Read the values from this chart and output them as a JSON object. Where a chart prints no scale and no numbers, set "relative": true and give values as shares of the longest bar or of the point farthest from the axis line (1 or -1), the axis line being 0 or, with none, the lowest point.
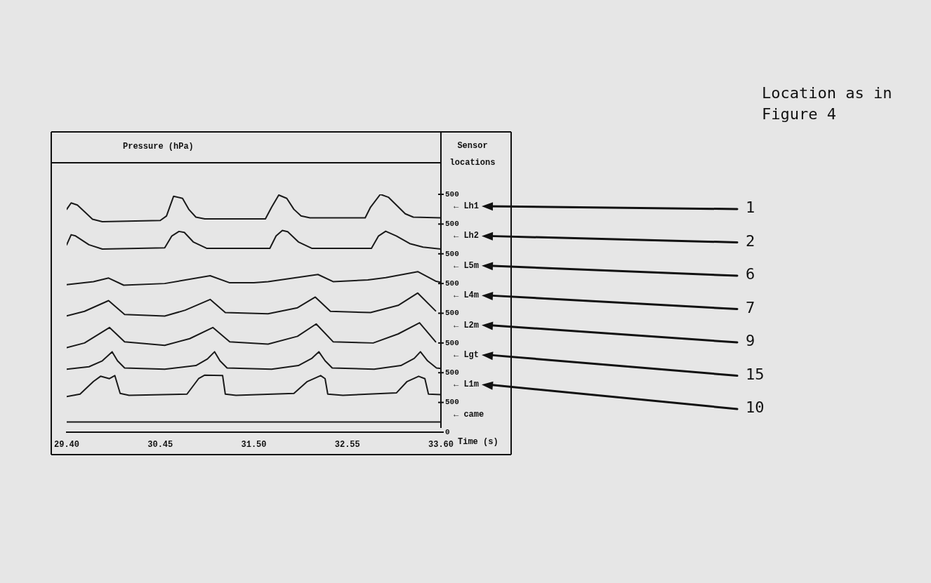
{
  "chart_data": {
    "type": "line",
    "title": "Pressure (hPa)",
    "xlabel": "Time (s)",
    "legend_title": "Sensor locations",
    "legend": "right",
    "grid": false,
    "marker": "none",
    "line_style": "solid",
    "relative": true,
    "xlim": [
      29.4,
      33.6
    ],
    "xticks": [
      {
        "value": 29.4,
        "label": "29.40"
      },
      {
        "value": 30.45,
        "label": "30.45"
      },
      {
        "value": 31.5,
        "label": "31.50"
      },
      {
        "value": 32.55,
        "label": "32.55"
      },
      {
        "value": 33.6,
        "label": "33.60"
      }
    ],
    "series": [
      {
        "name": "← Lh1",
        "color": "#1a1a1a",
        "x": [
          29.4,
          29.45,
          29.52,
          29.6,
          29.69,
          29.8,
          30.45,
          30.52,
          30.6,
          30.7,
          30.77,
          30.85,
          30.95,
          31.63,
          31.7,
          31.78,
          31.87,
          31.95,
          32.03,
          32.13,
          32.75,
          32.81,
          32.92,
          33.01,
          33.1,
          33.2,
          33.29,
          33.6
        ],
        "values": [
          0.937,
          0.964,
          0.955,
          0.927,
          0.895,
          0.885,
          0.89,
          0.909,
          0.992,
          0.983,
          0.937,
          0.904,
          0.897,
          0.897,
          0.946,
          0.997,
          0.983,
          0.937,
          0.909,
          0.901,
          0.901,
          0.946,
          1,
          0.988,
          0.955,
          0.918,
          0.904,
          0.901
        ]
      },
      {
        "name": "← Lh2",
        "color": "#1a1a1a",
        "x": [
          29.4,
          29.45,
          29.5,
          29.65,
          29.8,
          30.5,
          30.58,
          30.66,
          30.72,
          30.82,
          30.97,
          31.68,
          31.75,
          31.82,
          31.88,
          32.0,
          32.15,
          32.82,
          32.9,
          32.98,
          33.1,
          33.25,
          33.4,
          33.6
        ],
        "values": [
          0.788,
          0.83,
          0.825,
          0.788,
          0.77,
          0.775,
          0.825,
          0.844,
          0.84,
          0.8,
          0.773,
          0.773,
          0.825,
          0.848,
          0.843,
          0.8,
          0.773,
          0.773,
          0.825,
          0.845,
          0.825,
          0.793,
          0.778,
          0.77
        ]
      },
      {
        "name": "← L5m",
        "color": "#1a1a1a",
        "x": [
          29.4,
          29.7,
          29.87,
          30.04,
          30.5,
          31.01,
          31.23,
          31.5,
          31.66,
          32.22,
          32.39,
          32.78,
          32.98,
          33.34,
          33.54,
          33.6
        ],
        "values": [
          0.62,
          0.633,
          0.648,
          0.618,
          0.625,
          0.658,
          0.628,
          0.628,
          0.633,
          0.663,
          0.633,
          0.64,
          0.65,
          0.675,
          0.635,
          0.63
        ]
      },
      {
        "name": "← L4m",
        "color": "#1a1a1a",
        "x": [
          29.4,
          29.6,
          29.87,
          30.05,
          30.5,
          30.73,
          31.01,
          31.18,
          31.66,
          31.99,
          32.19,
          32.36,
          32.81,
          33.12,
          33.34,
          33.54
        ],
        "values": [
          0.489,
          0.508,
          0.553,
          0.495,
          0.488,
          0.513,
          0.558,
          0.503,
          0.498,
          0.523,
          0.568,
          0.508,
          0.503,
          0.533,
          0.585,
          0.51
        ]
      },
      {
        "name": "← L2m",
        "color": "#1a1a1a",
        "x": [
          29.4,
          29.6,
          29.88,
          30.05,
          30.5,
          30.78,
          31.04,
          31.23,
          31.66,
          31.99,
          32.2,
          32.39,
          32.84,
          33.12,
          33.36,
          33.54
        ],
        "values": [
          0.355,
          0.375,
          0.44,
          0.38,
          0.365,
          0.393,
          0.44,
          0.38,
          0.37,
          0.403,
          0.455,
          0.38,
          0.375,
          0.413,
          0.46,
          0.38
        ]
      },
      {
        "name": "← Lgt",
        "color": "#1a1a1a",
        "x": [
          29.4,
          29.65,
          29.8,
          29.91,
          29.97,
          30.05,
          30.5,
          30.85,
          30.98,
          31.06,
          31.12,
          31.2,
          31.7,
          32.0,
          32.15,
          32.23,
          32.3,
          32.38,
          32.85,
          33.15,
          33.3,
          33.37,
          33.45,
          33.55,
          33.6
        ],
        "values": [
          0.265,
          0.275,
          0.3,
          0.338,
          0.3,
          0.27,
          0.265,
          0.28,
          0.308,
          0.338,
          0.3,
          0.27,
          0.265,
          0.28,
          0.31,
          0.338,
          0.3,
          0.27,
          0.265,
          0.28,
          0.31,
          0.338,
          0.3,
          0.27,
          0.268
        ]
      },
      {
        "name": "← L1m",
        "color": "#1a1a1a",
        "x": [
          29.4,
          29.55,
          29.7,
          29.78,
          29.88,
          29.94,
          30.0,
          30.1,
          30.75,
          30.88,
          30.95,
          31.15,
          31.18,
          31.3,
          31.95,
          32.1,
          32.25,
          32.3,
          32.33,
          32.5,
          33.1,
          33.22,
          33.35,
          33.42,
          33.46,
          33.6
        ],
        "values": [
          0.15,
          0.16,
          0.213,
          0.235,
          0.225,
          0.238,
          0.163,
          0.155,
          0.16,
          0.225,
          0.24,
          0.238,
          0.16,
          0.155,
          0.163,
          0.213,
          0.238,
          0.225,
          0.16,
          0.155,
          0.165,
          0.213,
          0.235,
          0.225,
          0.16,
          0.158
        ]
      },
      {
        "name": "← came",
        "color": "#1a1a1a",
        "x": [
          29.4,
          33.6
        ],
        "values": [
          0.043,
          0.043
        ]
      }
    ],
    "annotations": [
      "Location as in Figure 4",
      "1",
      "2",
      "6",
      "7",
      "9",
      "15",
      "10",
      "500",
      "500",
      "500",
      "500",
      "500",
      "500",
      "500",
      "500",
      "0"
    ]
  }
}
